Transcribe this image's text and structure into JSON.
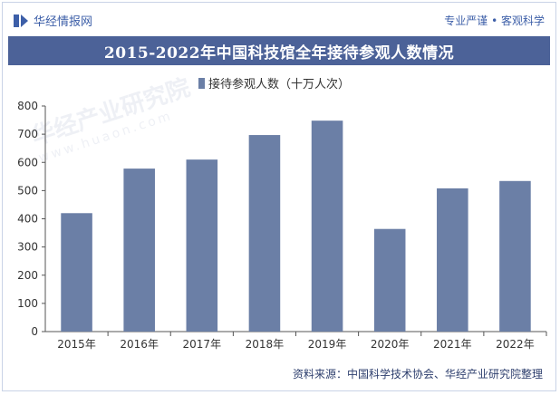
{
  "header": {
    "logo_text": "华经情报网",
    "tagline": "专业严谨 • 客观科学"
  },
  "footer": {
    "source": "资料来源：中国科学技术协会、华经产业研究院整理"
  },
  "watermark": {
    "name": "华经产业研究院",
    "url": "www.huaon.com"
  },
  "colors": {
    "bar": "#6b7fa6",
    "title_bg": "#4c6298",
    "axis": "#555555"
  },
  "chart_data": {
    "type": "bar",
    "title": "2015-2022年中国科技馆全年接待参观人数情况",
    "categories": [
      "2015年",
      "2016年",
      "2017年",
      "2018年",
      "2019年",
      "2020年",
      "2021年",
      "2022年"
    ],
    "series": [
      {
        "name": "接待参观人数（十万人次）",
        "values": [
          420,
          578,
          610,
          697,
          748,
          364,
          508,
          534
        ]
      }
    ],
    "ylim": [
      0,
      800
    ],
    "yticks": [
      0,
      100,
      200,
      300,
      400,
      500,
      600,
      700,
      800
    ],
    "xlabel": "",
    "ylabel": "",
    "grid": false,
    "legend_position": "top-left"
  }
}
